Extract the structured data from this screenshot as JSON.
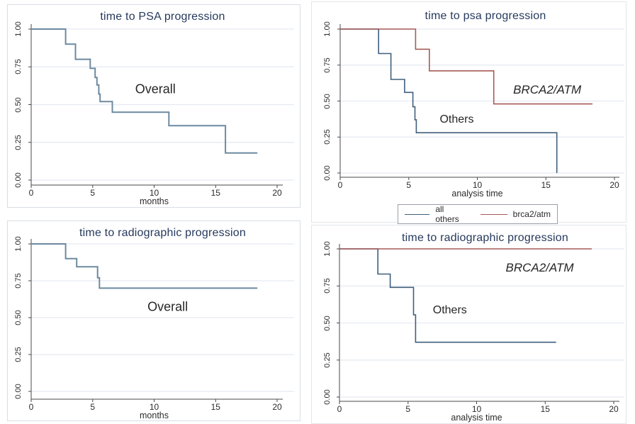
{
  "colors": {
    "blue_left": "#6d8aa0",
    "blue": "#3f5f7c",
    "red": "#a65b57",
    "title": "#26395c",
    "grid": "#e6ebf2",
    "axis": "#4a4a4a",
    "text": "#2b2b2b",
    "panel_border_left": "#d9dee5",
    "panel_border_right": "#e3e6eb",
    "legend_border": "#9aa0a6"
  },
  "chart_data": [
    {
      "type": "line",
      "subtype": "kaplan-meier-step",
      "title": "time to PSA progression",
      "xlabel": "months",
      "ylabel": "",
      "xlim": [
        0,
        20
      ],
      "ylim": [
        0,
        1
      ],
      "xticks": [
        0,
        5,
        10,
        15,
        20
      ],
      "ytick_labels": [
        "0.00",
        "0.25",
        "0.50",
        "0.75",
        "1.00"
      ],
      "grid": "horizontal",
      "legend": null,
      "annotations": [
        {
          "text": "Overall",
          "t": 10.1,
          "s": 0.6,
          "italic": false,
          "size": 18
        }
      ],
      "series": [
        {
          "name": "Overall",
          "color": "blue_left",
          "end": 18.4,
          "points": [
            [
              0,
              1.0
            ],
            [
              2.8,
              0.9
            ],
            [
              3.6,
              0.8
            ],
            [
              4.8,
              0.74
            ],
            [
              5.2,
              0.68
            ],
            [
              5.35,
              0.63
            ],
            [
              5.5,
              0.57
            ],
            [
              5.6,
              0.52
            ],
            [
              6.6,
              0.45
            ],
            [
              11.2,
              0.36
            ],
            [
              15.8,
              0.18
            ]
          ]
        }
      ]
    },
    {
      "type": "line",
      "subtype": "kaplan-meier-step",
      "title": "time to psa progression",
      "xlabel": "analysis time",
      "ylabel": "",
      "xlim": [
        0,
        20
      ],
      "ylim": [
        0,
        1
      ],
      "xticks": [
        0,
        5,
        10,
        15,
        20
      ],
      "ytick_labels": [
        "0.00",
        "0.25",
        "0.50",
        "0.75",
        "1.00"
      ],
      "grid": "horizontal",
      "legend": {
        "position": "bottom",
        "items": [
          {
            "label": "all others",
            "color": "blue"
          },
          {
            "label": "brca2/atm",
            "color": "red"
          }
        ]
      },
      "annotations": [
        {
          "text": "Others",
          "t": 8.5,
          "s": 0.37,
          "italic": false,
          "size": 16
        },
        {
          "text": "BRCA2/ATM",
          "t": 15.1,
          "s": 0.575,
          "italic": true,
          "size": 17
        }
      ],
      "series": [
        {
          "name": "all others",
          "color": "blue",
          "end": 15.8,
          "points": [
            [
              0,
              1.0
            ],
            [
              2.8,
              0.83
            ],
            [
              3.7,
              0.65
            ],
            [
              4.7,
              0.56
            ],
            [
              5.3,
              0.46
            ],
            [
              5.45,
              0.37
            ],
            [
              5.55,
              0.28
            ],
            [
              15.8,
              0.0
            ]
          ]
        },
        {
          "name": "brca2/atm",
          "color": "red",
          "end": 18.4,
          "points": [
            [
              0,
              1.0
            ],
            [
              5.5,
              0.86
            ],
            [
              6.5,
              0.71
            ],
            [
              11.2,
              0.48
            ]
          ]
        }
      ]
    },
    {
      "type": "line",
      "subtype": "kaplan-meier-step",
      "title": "time to radiographic progression",
      "xlabel": "months",
      "ylabel": "",
      "xlim": [
        0,
        20
      ],
      "ylim": [
        0,
        1
      ],
      "xticks": [
        0,
        5,
        10,
        15,
        20
      ],
      "ytick_labels": [
        "0.00",
        "0.25",
        "0.50",
        "0.75",
        "1.00"
      ],
      "grid": "horizontal",
      "legend": null,
      "annotations": [
        {
          "text": "Overall",
          "t": 11.1,
          "s": 0.572,
          "italic": false,
          "size": 18
        }
      ],
      "series": [
        {
          "name": "Overall",
          "color": "blue_left",
          "end": 18.4,
          "points": [
            [
              0,
              1.0
            ],
            [
              2.8,
              0.9
            ],
            [
              3.7,
              0.845
            ],
            [
              5.4,
              0.77
            ],
            [
              5.55,
              0.7
            ]
          ]
        }
      ]
    },
    {
      "type": "line",
      "subtype": "kaplan-meier-step",
      "title": "time to radiographic progression",
      "xlabel": "analysis time",
      "ylabel": "",
      "xlim": [
        0,
        20
      ],
      "ylim": [
        0,
        1
      ],
      "xticks": [
        0,
        5,
        10,
        15,
        20
      ],
      "ytick_labels": [
        "0.00",
        "0.25",
        "0.50",
        "0.75",
        "1.00"
      ],
      "grid": "horizontal",
      "legend": null,
      "annotations": [
        {
          "text": "Others",
          "t": 8.05,
          "s": 0.585,
          "italic": false,
          "size": 16
        },
        {
          "text": "BRCA2/ATM",
          "t": 14.6,
          "s": 0.87,
          "italic": true,
          "size": 17
        }
      ],
      "series": [
        {
          "name": "all others",
          "color": "blue",
          "end": 15.8,
          "points": [
            [
              0,
              1.0
            ],
            [
              2.8,
              0.83
            ],
            [
              3.7,
              0.74
            ],
            [
              5.4,
              0.555
            ],
            [
              5.55,
              0.37
            ]
          ]
        },
        {
          "name": "brca2/atm",
          "color": "red",
          "end": 18.4,
          "points": [
            [
              0,
              1.0
            ]
          ]
        }
      ]
    }
  ]
}
